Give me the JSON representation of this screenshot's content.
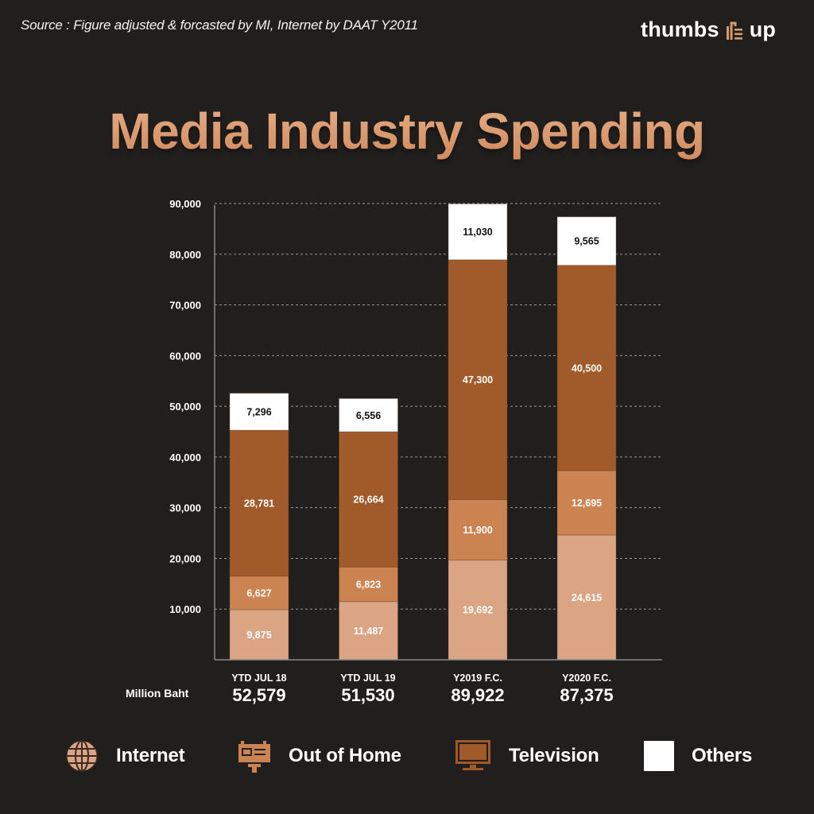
{
  "header": {
    "source": "Source : Figure adjusted & forcasted by MI, Internet by DAAT Y2011",
    "logo_left": "thumbs",
    "logo_right": "up",
    "logo_icon": "thumbs-up-icon"
  },
  "colors": {
    "background": "#211f1e",
    "internet": "#dba583",
    "out_of_home": "#cc8352",
    "television": "#a15a29",
    "others": "#ffffff",
    "title_accent": "#d99a6c"
  },
  "chart_data": {
    "type": "bar",
    "stacked": true,
    "title": "Media Industry Spending",
    "unit_label": "Million Baht",
    "categories": [
      "YTD JUL 18",
      "YTD JUL 19",
      "Y2019 F.C.",
      "Y2020 F.C."
    ],
    "totals": [
      "52,579",
      "51,530",
      "89,922",
      "87,375"
    ],
    "series": [
      {
        "name": "Internet",
        "icon": "globe-icon",
        "values": [
          9875,
          11487,
          19692,
          24615
        ],
        "labels": [
          "9,875",
          "11,487",
          "19,692",
          "24,615"
        ]
      },
      {
        "name": "Out of Home",
        "icon": "billboard-icon",
        "values": [
          6627,
          6823,
          11900,
          12695
        ],
        "labels": [
          "6,627",
          "6,823",
          "11,900",
          "12,695"
        ]
      },
      {
        "name": "Television",
        "icon": "television-icon",
        "values": [
          28781,
          26664,
          47300,
          40500
        ],
        "labels": [
          "28,781",
          "26,664",
          "47,300",
          "40,500"
        ]
      },
      {
        "name": "Others",
        "icon": "square-icon",
        "values": [
          7296,
          6556,
          11030,
          9565
        ],
        "labels": [
          "7,296",
          "6,556",
          "11,030",
          "9,565"
        ]
      }
    ],
    "ylim": [
      0,
      90000
    ],
    "yticks": [
      10000,
      20000,
      30000,
      40000,
      50000,
      60000,
      70000,
      80000,
      90000
    ],
    "ytick_labels": [
      "10,000",
      "20,000",
      "30,000",
      "40,000",
      "50,000",
      "60,000",
      "70,000",
      "80,000",
      "90,000"
    ],
    "grid": true,
    "legend_position": "bottom"
  }
}
